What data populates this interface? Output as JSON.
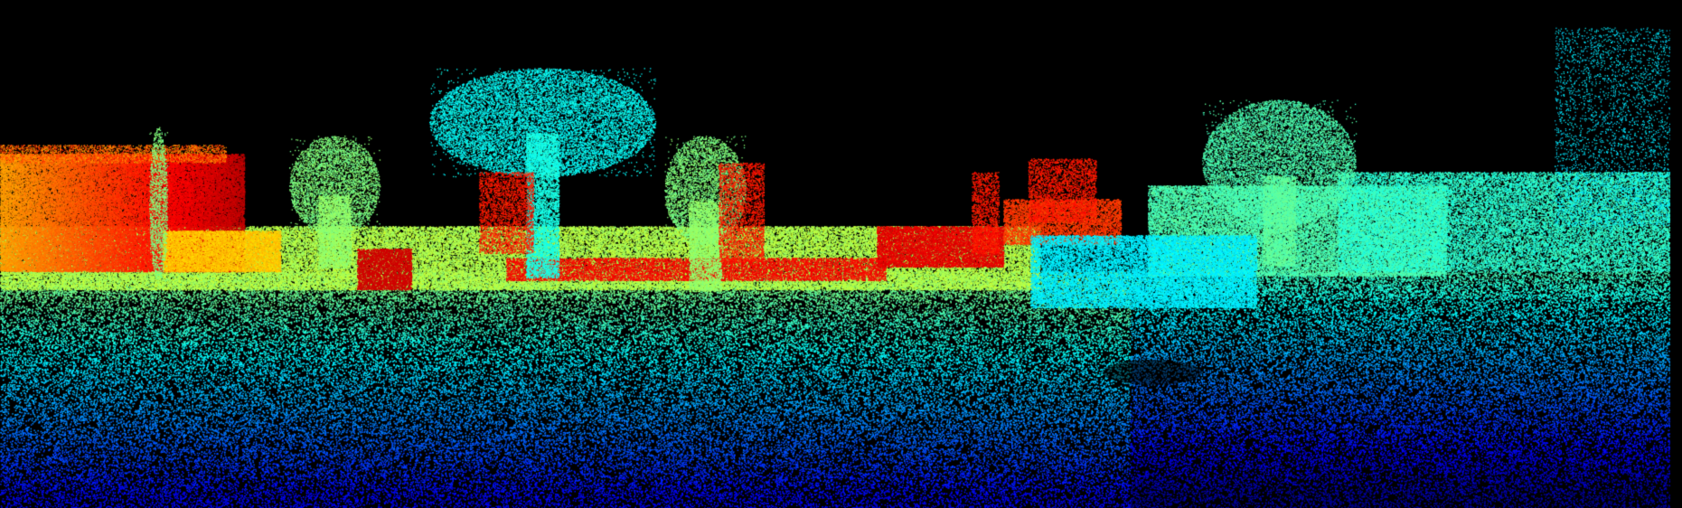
{
  "scene": {
    "subject": "lidar-point-cloud",
    "view": "street-level",
    "background_color": "#000000",
    "colormap": "height-jet",
    "colormap_stops": [
      "#0a1a8a",
      "#1565d8",
      "#19a8d0",
      "#1cc9a0",
      "#2ad24a",
      "#9be31c",
      "#f2ec10",
      "#ffb000",
      "#ff5a10",
      "#e81010"
    ],
    "visible_objects": [
      "road",
      "trees",
      "buildings",
      "parked-vehicles",
      "poles"
    ]
  }
}
